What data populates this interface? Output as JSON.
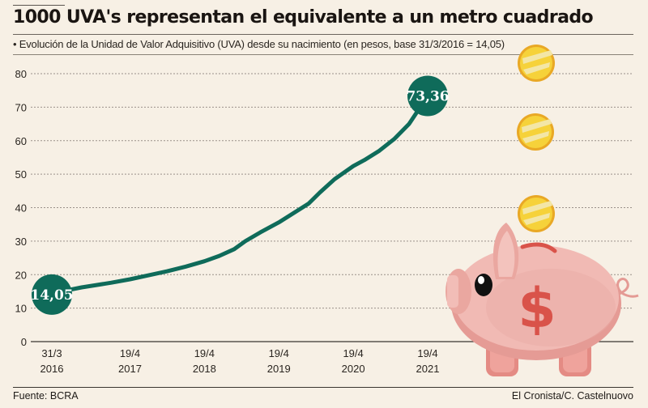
{
  "header": {
    "title": "1000 UVA's representan el equivalente a un metro cuadrado",
    "subtitle": "• Evolución de la Unidad de Valor Adquisitivo (UVA) desde su nacimiento (en pesos, base 31/3/2016 = 14,05)"
  },
  "footer": {
    "source": "Fuente: BCRA",
    "credit": "El Cronista/C. Castelnuovo"
  },
  "colors": {
    "background": "#f7f0e5",
    "line": "#0f6b5a",
    "marker": "#0f6b5a",
    "gridline": "#9a918a",
    "coin": "#f2c230",
    "piggy": "#efb3ac",
    "dollar": "#d9534a"
  },
  "illustration": {
    "name": "piggy-bank-with-falling-coins",
    "coins": 3
  },
  "chart_data": {
    "type": "line",
    "title": "1000 UVA's representan el equivalente a un metro cuadrado",
    "subtitle": "Evolución de la Unidad de Valor Adquisitivo (UVA) desde su nacimiento (en pesos, base 31/3/2016 = 14,05)",
    "xlabel": "",
    "ylabel": "",
    "ylim": [
      0,
      80
    ],
    "yticks": [
      0,
      10,
      20,
      30,
      40,
      50,
      60,
      70,
      80
    ],
    "xlim": [
      2016.25,
      2021.3
    ],
    "grid": true,
    "legend": "none",
    "xticks": [
      {
        "x": 2016.25,
        "line1": "31/3",
        "line2": "2016"
      },
      {
        "x": 2017.3,
        "line1": "19/4",
        "line2": "2017"
      },
      {
        "x": 2018.3,
        "line1": "19/4",
        "line2": "2018"
      },
      {
        "x": 2019.3,
        "line1": "19/4",
        "line2": "2019"
      },
      {
        "x": 2020.3,
        "line1": "19/4",
        "line2": "2020"
      },
      {
        "x": 2021.3,
        "line1": "19/4",
        "line2": "2021"
      }
    ],
    "series": [
      {
        "name": "UVA",
        "x": [
          2016.25,
          2016.45,
          2016.65,
          2016.85,
          2017.05,
          2017.3,
          2017.55,
          2017.8,
          2018.05,
          2018.3,
          2018.5,
          2018.7,
          2018.85,
          2019.05,
          2019.3,
          2019.5,
          2019.7,
          2019.85,
          2020.05,
          2020.3,
          2020.45,
          2020.65,
          2020.85,
          2021.05,
          2021.2,
          2021.3
        ],
        "values": [
          14.05,
          15.3,
          16.2,
          16.9,
          17.6,
          18.6,
          19.8,
          21.0,
          22.4,
          24.0,
          25.6,
          27.6,
          30.0,
          32.6,
          35.6,
          38.4,
          41.2,
          44.5,
          48.5,
          52.4,
          54.2,
          57.0,
          60.5,
          65.0,
          70.0,
          73.36
        ]
      }
    ],
    "annotations": [
      {
        "x": 2016.25,
        "value": 14.05,
        "label": "14,05"
      },
      {
        "x": 2021.3,
        "value": 73.36,
        "label": "73,36"
      }
    ]
  }
}
